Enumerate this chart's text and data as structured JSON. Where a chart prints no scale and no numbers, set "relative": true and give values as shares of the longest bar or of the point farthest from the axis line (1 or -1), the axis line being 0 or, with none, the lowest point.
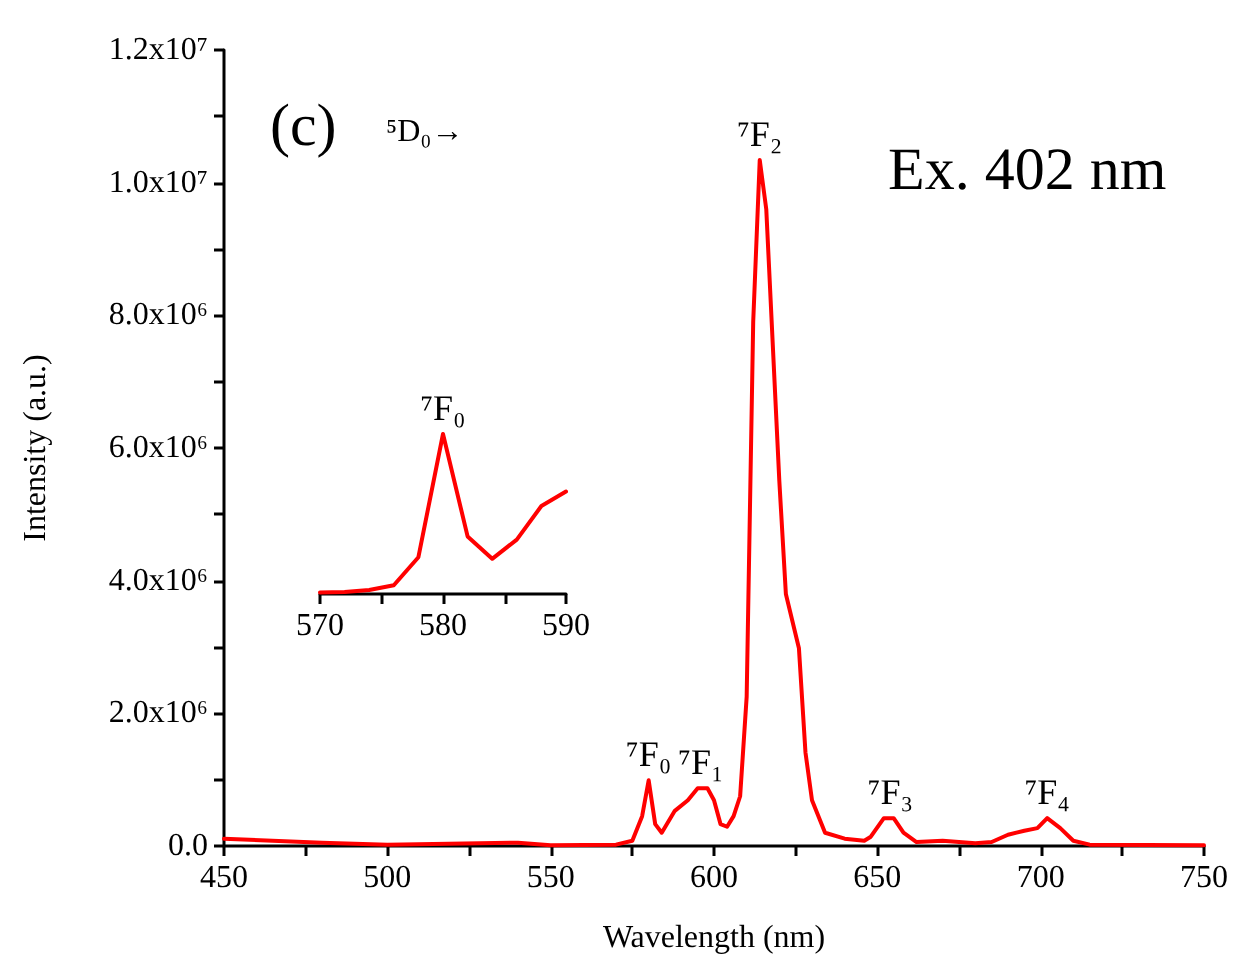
{
  "chart_data": [
    {
      "type": "line",
      "xlabel": "Wavelength (nm)",
      "ylabel": "Intensity (a.u.)",
      "annotations": [
        "(c)",
        "⁵D₀→",
        "Ex. 402 nm",
        {
          "text": "⁷F₀",
          "x": 580,
          "y": 990000
        },
        {
          "text": "⁷F₁",
          "x": 596,
          "y": 870000
        },
        {
          "text": "⁷F₂",
          "x": 614,
          "y": 10340000
        },
        {
          "text": "⁷F₃",
          "x": 654,
          "y": 420000
        },
        {
          "text": "⁷F₄",
          "x": 702,
          "y": 420000
        }
      ],
      "x": [
        450,
        480,
        500,
        540,
        550,
        570,
        575,
        578,
        580,
        582,
        584,
        588,
        592,
        595,
        598,
        600,
        602,
        604,
        606,
        608,
        610,
        612,
        614,
        616,
        620,
        622,
        626,
        628,
        630,
        634,
        640,
        646,
        648,
        652,
        655,
        658,
        662,
        670,
        680,
        685,
        690,
        695,
        699,
        702,
        706,
        710,
        715,
        750
      ],
      "series": [
        {
          "color": "#ff0000",
          "values": [
            110000,
            50000,
            20000,
            50000,
            10000,
            20000,
            80000,
            450000,
            990000,
            330000,
            200000,
            530000,
            690000,
            870000,
            870000,
            690000,
            330000,
            290000,
            450000,
            750000,
            2250000,
            7900000,
            10340000,
            9600000,
            5500000,
            3800000,
            2980000,
            1410000,
            690000,
            200000,
            110000,
            80000,
            140000,
            420000,
            420000,
            200000,
            60000,
            80000,
            40000,
            60000,
            170000,
            230000,
            270000,
            420000,
            270000,
            80000,
            20000,
            10000
          ]
        }
      ],
      "xlim": [
        450,
        750
      ],
      "xticks": [
        450,
        {
          "value": 475,
          "label": null
        },
        500,
        {
          "value": 525,
          "label": null
        },
        550,
        {
          "value": 575,
          "label": null
        },
        600,
        {
          "value": 625,
          "label": null
        },
        650,
        {
          "value": 675,
          "label": null
        },
        700,
        {
          "value": 725,
          "label": null
        },
        750
      ],
      "ylim": [
        0,
        12000000
      ],
      "yticks": [
        {
          "value": 0,
          "label": "0.0"
        },
        {
          "value": 1000000,
          "label": null
        },
        {
          "value": 2000000,
          "label": "2.0x10⁶"
        },
        {
          "value": 3000000,
          "label": null
        },
        {
          "value": 4000000,
          "label": "4.0x10⁶"
        },
        {
          "value": 5000000,
          "label": null
        },
        {
          "value": 6000000,
          "label": "6.0x10⁶"
        },
        {
          "value": 7000000,
          "label": null
        },
        {
          "value": 8000000,
          "label": "8.0x10⁶"
        },
        {
          "value": 9000000,
          "label": null
        },
        {
          "value": 10000000,
          "label": "1.0x10⁷"
        },
        {
          "value": 11000000,
          "label": null
        },
        {
          "value": 12000000,
          "label": "1.2x10⁷"
        }
      ]
    },
    {
      "type": "line",
      "relative": true,
      "tick_labels": "x",
      "annotations": [
        {
          "text": "⁷F₀",
          "x": 580,
          "y": 1
        }
      ],
      "x": [
        570,
        572,
        574,
        576,
        578,
        580,
        582,
        584,
        586,
        588,
        590
      ],
      "series": [
        {
          "color": "#ff0000",
          "values": [
            0.01,
            0.013,
            0.025,
            0.055,
            0.23,
            1,
            0.36,
            0.22,
            0.34,
            0.55,
            0.64
          ]
        }
      ],
      "xlim": [
        570,
        590
      ],
      "xticks": [
        570,
        {
          "value": 575,
          "label": null
        },
        580,
        {
          "value": 585,
          "label": null
        },
        590
      ]
    }
  ]
}
